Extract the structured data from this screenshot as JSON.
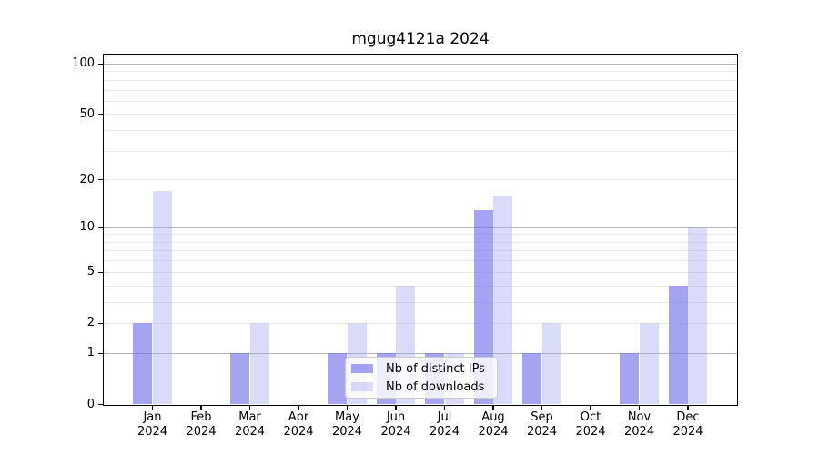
{
  "chart_data": {
    "type": "bar",
    "title": "mgug4121a 2024",
    "categories": [
      "Jan",
      "Feb",
      "Mar",
      "Apr",
      "May",
      "Jun",
      "Jul",
      "Aug",
      "Sep",
      "Oct",
      "Nov",
      "Dec"
    ],
    "category_year_label": "2024",
    "series": [
      {
        "name": "Nb of distinct IPs",
        "color": "#a6a6f0",
        "rgba": "rgba(108,108,232,0.62)",
        "values": [
          2,
          0,
          1,
          0,
          1,
          1,
          1,
          13,
          1,
          0,
          1,
          4
        ]
      },
      {
        "name": "Nb of downloads",
        "color": "#dbdbf9",
        "rgba": "rgba(158,158,240,0.38)",
        "values": [
          17,
          0,
          2,
          0,
          2,
          4,
          1,
          16,
          2,
          0,
          2,
          10
        ]
      }
    ],
    "y_axis": {
      "scale": "log(1+x)",
      "tick_values": [
        0,
        1,
        2,
        5,
        10,
        20,
        50,
        100
      ],
      "tick_labels": [
        "0",
        "1",
        "2",
        "5",
        "10",
        "20",
        "50",
        "100"
      ],
      "ylim": [
        0,
        116
      ]
    },
    "grid": {
      "major_values": [
        1,
        10,
        100
      ],
      "minor_values": [
        2,
        3,
        4,
        5,
        6,
        7,
        8,
        9,
        20,
        30,
        40,
        50,
        60,
        70,
        80,
        90
      ]
    },
    "legend": {
      "position": "bottom-center",
      "entries": [
        "Nb of distinct IPs",
        "Nb of downloads"
      ]
    },
    "colors": {
      "background": "#ffffff",
      "major_grid": "#b9b9b9",
      "minor_grid": "#e9e9e9",
      "axis": "#000000",
      "legend_border": "#cccccc"
    }
  }
}
